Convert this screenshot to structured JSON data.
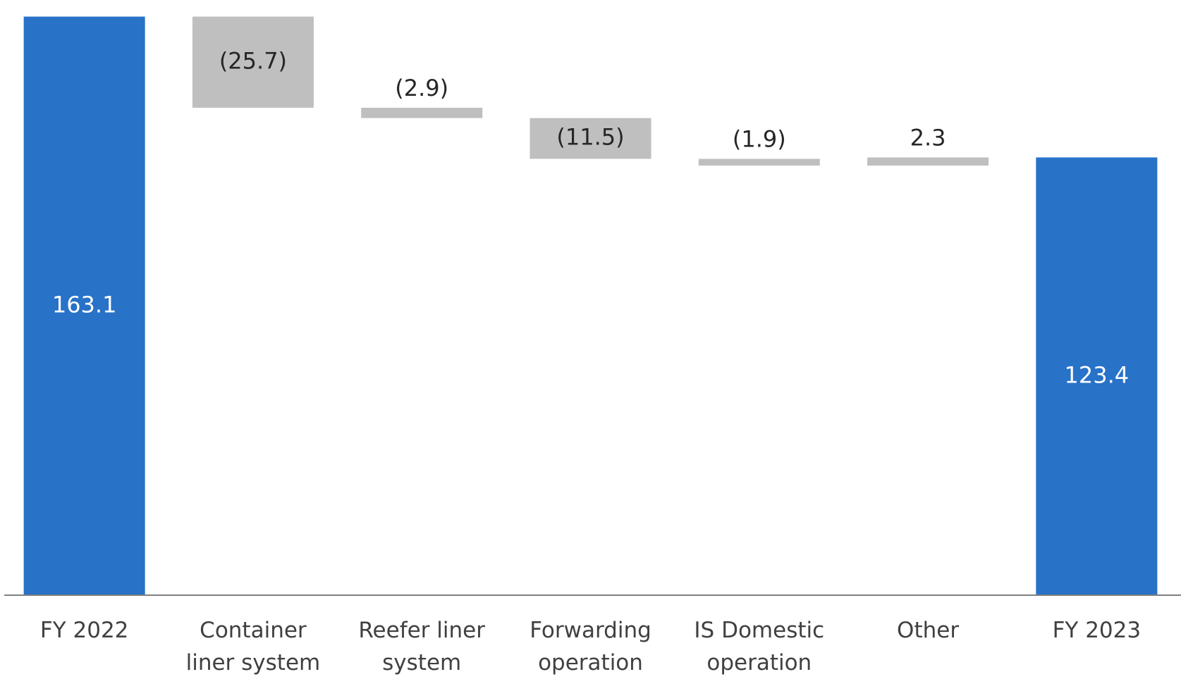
{
  "chart_data": {
    "type": "waterfall",
    "categories": [
      "FY 2022",
      "Container liner system",
      "Reefer liner system",
      "Forwarding operation",
      "IS Domestic operation",
      "Other",
      "FY 2023"
    ],
    "values": [
      163.1,
      -25.7,
      -2.9,
      -11.5,
      -1.9,
      2.3,
      123.4
    ],
    "value_labels": [
      "163.1",
      "(25.7)",
      "(2.9)",
      "(11.5)",
      "(1.9)",
      "2.3",
      "123.4"
    ],
    "totals": [
      true,
      false,
      false,
      false,
      false,
      false,
      true
    ],
    "total_color": "#2872c8",
    "change_color": "#bfbfbf",
    "ylim": [
      0,
      165
    ]
  }
}
